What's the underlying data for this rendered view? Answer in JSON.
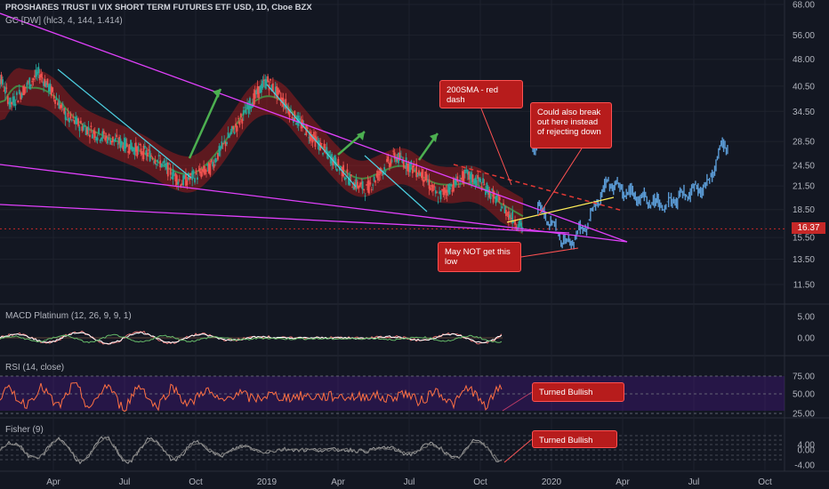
{
  "header": {
    "title": "PROSHARES TRUST II VIX SHORT TERM FUTURES ETF USD, 1D, Cboe BZX",
    "indicator": "GC [DW] (hlc3, 4, 144, 1.414)"
  },
  "price_tag": "16.37",
  "panes": {
    "macd_label": "MACD Platinum (12, 26, 9, 9, 1)",
    "rsi_label": "RSI (14, close)",
    "fisher_label": "Fisher (9)"
  },
  "annotations": {
    "sma": "200SMA - red dash",
    "breakout": "Could also break out here instead of rejecting down",
    "low": "May NOT get this low",
    "rsi_note": "Turned Bullish",
    "fisher_note": "Turned Bullish"
  },
  "colors": {
    "background": "#131722",
    "up": "#26a69a",
    "down": "#ef5350",
    "projection": "#5b9bd5",
    "trendline": "#e040fb",
    "channel_green": "#2e7d32",
    "channel_red": "#b71c1c",
    "arrow": "#4caf50"
  },
  "chart_data": {
    "type": "candlestick",
    "symbol": "PROSHARES TRUST II VIX SHORT TERM FUTURES ETF USD, 1D, Cboe BZX",
    "x_tick_labels": [
      "Apr",
      "Jul",
      "Oct",
      "2019",
      "Apr",
      "Jul",
      "Oct",
      "2020",
      "Apr",
      "Jul",
      "Oct"
    ],
    "price_axis": [
      68.0,
      56.0,
      48.0,
      40.5,
      34.5,
      28.5,
      24.5,
      21.5,
      18.5,
      15.5,
      13.5,
      11.5
    ],
    "scale": "log",
    "last_price": 16.37,
    "price_path": [
      [
        2018.0,
        21
      ],
      [
        2018.05,
        45
      ],
      [
        2018.1,
        36
      ],
      [
        2018.2,
        44
      ],
      [
        2018.3,
        33
      ],
      [
        2018.4,
        30
      ],
      [
        2018.5,
        28
      ],
      [
        2018.6,
        26
      ],
      [
        2018.7,
        22
      ],
      [
        2018.8,
        24
      ],
      [
        2018.9,
        32
      ],
      [
        2019.0,
        42
      ],
      [
        2019.1,
        33
      ],
      [
        2019.2,
        27
      ],
      [
        2019.3,
        22
      ],
      [
        2019.35,
        21
      ],
      [
        2019.45,
        26
      ],
      [
        2019.55,
        23
      ],
      [
        2019.6,
        20
      ],
      [
        2019.7,
        23
      ],
      [
        2019.75,
        22
      ],
      [
        2019.85,
        18
      ],
      [
        2019.9,
        16.4
      ]
    ],
    "projection_path": [
      [
        2019.95,
        19
      ],
      [
        2020.0,
        17
      ],
      [
        2020.05,
        14.8
      ],
      [
        2020.12,
        16.5
      ],
      [
        2020.2,
        22
      ],
      [
        2020.3,
        20
      ],
      [
        2020.4,
        19
      ],
      [
        2020.5,
        21
      ],
      [
        2020.55,
        21.5
      ],
      [
        2020.6,
        28
      ]
    ],
    "macd": {
      "axis": [
        5.0,
        0.0
      ]
    },
    "rsi": {
      "axis": [
        75.0,
        50.0,
        25.0
      ]
    },
    "fisher": {
      "axis": [
        4.0,
        0.0,
        -4.0
      ]
    }
  }
}
